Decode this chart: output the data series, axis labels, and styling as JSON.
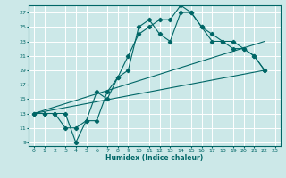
{
  "xlabel": "Humidex (Indice chaleur)",
  "bg_color": "#cce8e8",
  "grid_color": "#ffffff",
  "line_color": "#006666",
  "xlim": [
    -0.5,
    23.5
  ],
  "ylim": [
    8.5,
    28
  ],
  "xticks": [
    0,
    1,
    2,
    3,
    4,
    5,
    6,
    7,
    8,
    9,
    10,
    11,
    12,
    13,
    14,
    15,
    16,
    17,
    18,
    19,
    20,
    21,
    22,
    23
  ],
  "yticks": [
    9,
    11,
    13,
    15,
    17,
    19,
    21,
    23,
    25,
    27
  ],
  "curve1_x": [
    0,
    1,
    2,
    3,
    4,
    5,
    6,
    7,
    8,
    9,
    10,
    11,
    12,
    13,
    14,
    15,
    16,
    17,
    18,
    19,
    20,
    21,
    22
  ],
  "curve1_y": [
    13,
    13,
    13,
    13,
    9,
    12,
    12,
    16,
    18,
    19,
    25,
    26,
    24,
    23,
    27,
    27,
    25,
    24,
    23,
    23,
    22,
    21,
    19
  ],
  "curve2_x": [
    0,
    1,
    2,
    3,
    4,
    5,
    6,
    7,
    8,
    9,
    10,
    11,
    12,
    13,
    14,
    15,
    16,
    17,
    18,
    19,
    20,
    21,
    22
  ],
  "curve2_y": [
    13,
    13,
    13,
    11,
    11,
    12,
    16,
    15,
    18,
    21,
    24,
    25,
    26,
    26,
    28,
    27,
    25,
    23,
    23,
    22,
    22,
    21,
    19
  ],
  "line1_x": [
    0,
    22
  ],
  "line1_y": [
    13,
    19
  ],
  "line2_x": [
    0,
    22
  ],
  "line2_y": [
    13,
    23
  ]
}
